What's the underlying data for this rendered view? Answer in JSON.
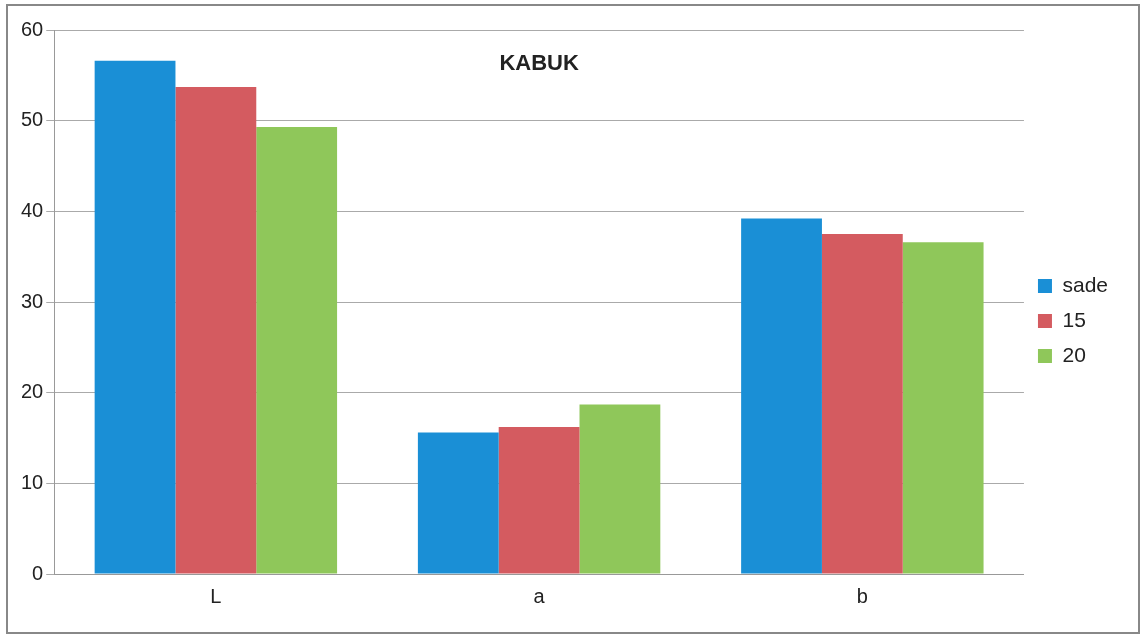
{
  "chart_data": {
    "type": "bar",
    "title": "KABUK",
    "categories": [
      "L",
      "a",
      "b"
    ],
    "series": [
      {
        "name": "sade",
        "color": "#1a8fd6",
        "values": [
          56.6,
          15.6,
          39.2
        ]
      },
      {
        "name": "15",
        "color": "#d45b60",
        "values": [
          53.7,
          16.2,
          37.5
        ]
      },
      {
        "name": "20",
        "color": "#8fc75a",
        "values": [
          49.3,
          18.7,
          36.6
        ]
      }
    ],
    "ylim": [
      0,
      60
    ],
    "yticks": [
      0,
      10,
      20,
      30,
      40,
      50,
      60
    ],
    "grid": "y",
    "legend": "right"
  }
}
